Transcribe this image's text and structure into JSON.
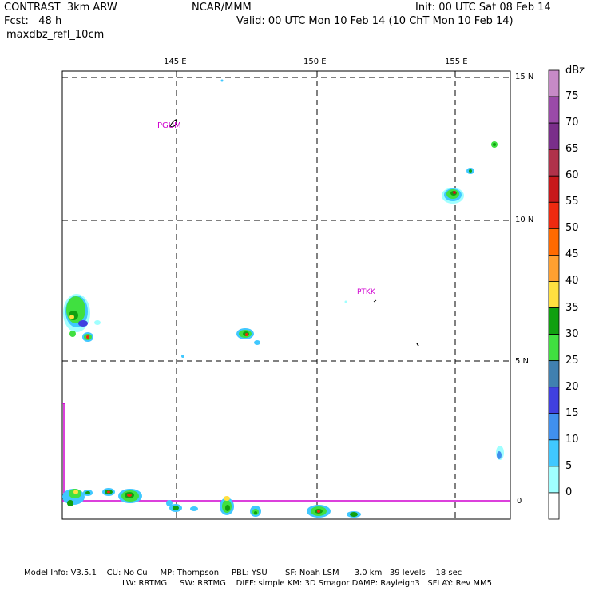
{
  "header": {
    "model": "CONTRAST  3km ARW",
    "org": "NCAR/MMM",
    "init": "Init: 00 UTC Sat 08 Feb 14",
    "fcst": "Fcst:   48 h",
    "valid": "Valid: 00 UTC Mon 10 Feb 14 (10 ChT Mon 10 Feb 14)",
    "field": "maxdbz_refl_10cm"
  },
  "map": {
    "lon_labels": [
      "145 E",
      "150 E",
      "155 E"
    ],
    "lat_labels": [
      "15 N",
      "10 N",
      "5 N",
      "0"
    ],
    "stations": [
      "PGUM",
      "PTKK"
    ]
  },
  "colorbar": {
    "unit": "dBz",
    "levels": [
      "75",
      "70",
      "65",
      "60",
      "55",
      "50",
      "45",
      "40",
      "35",
      "30",
      "25",
      "20",
      "15",
      "10",
      "5",
      "0"
    ],
    "colors": [
      "#c68ac6",
      "#9a4aa8",
      "#7a2e8a",
      "#b0324a",
      "#c8181a",
      "#ee2a10",
      "#ff6a00",
      "#ffa030",
      "#ffe040",
      "#10a010",
      "#40e040",
      "#4080b0",
      "#4040e0",
      "#4090ee",
      "#40c8ff",
      "#a0ffff",
      "#ffffff"
    ]
  },
  "footer": {
    "line1": "Model Info: V3.5.1    CU: No Cu     MP: Thompson     PBL: YSU       SF: Noah LSM      3.0 km   39 levels    18 sec",
    "line2": "LW: RRTMG     SW: RRTMG    DIFF: simple KM: 3D Smagor DAMP: Rayleigh3   SFLAY: Rev MM5"
  }
}
